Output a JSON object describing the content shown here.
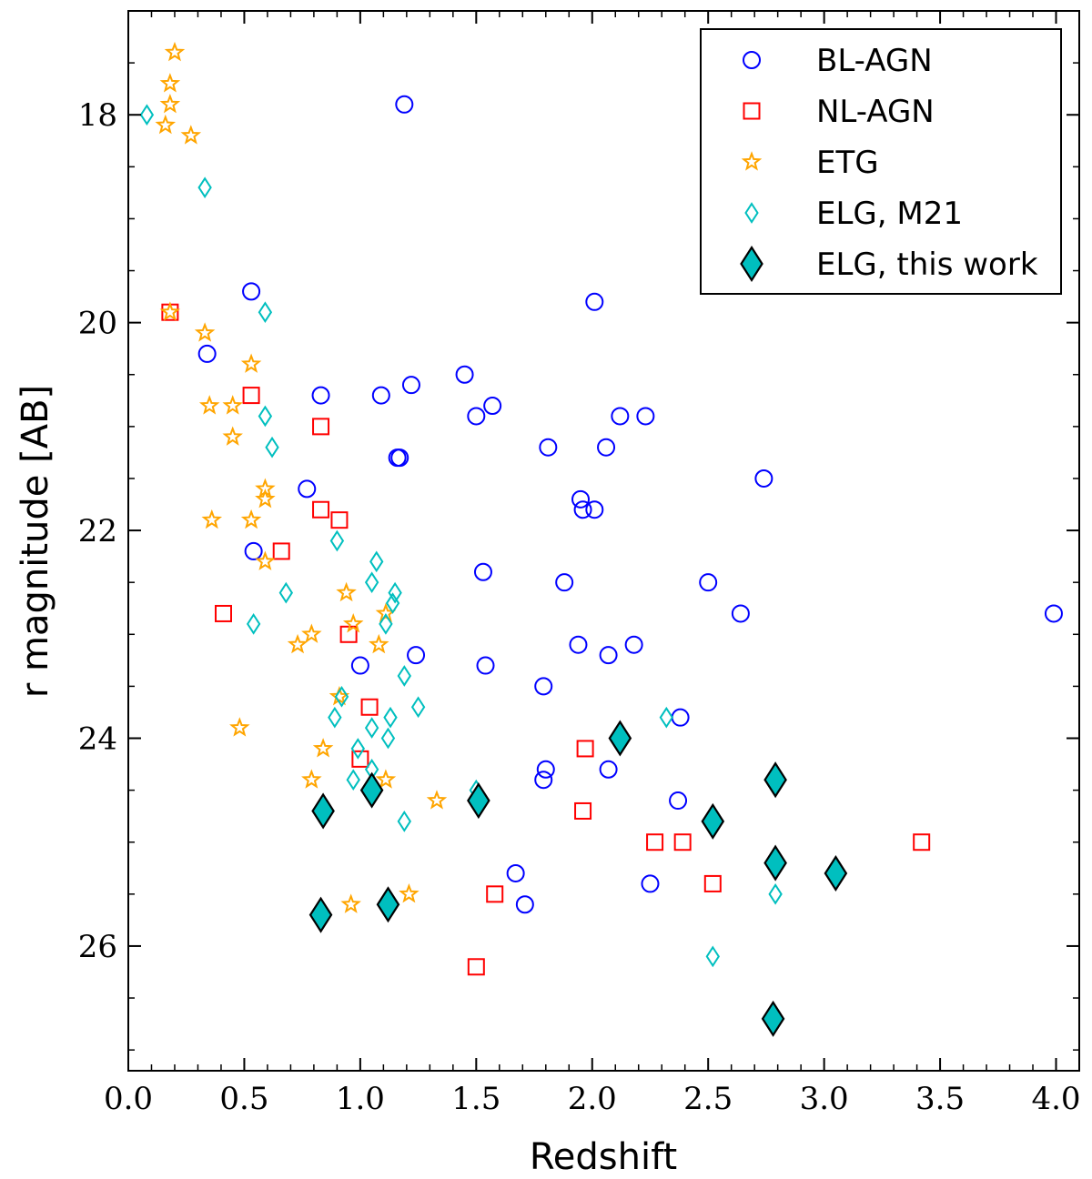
{
  "chart_data": {
    "type": "scatter",
    "title": "",
    "xlabel": "Redshift",
    "ylabel": "r magnitude [AB]",
    "xlim": [
      0.0,
      4.1
    ],
    "ylim": [
      27.2,
      17.0
    ],
    "y_inverted": true,
    "grid": false,
    "legend_position": "top-right",
    "xticks": [
      0.0,
      0.5,
      1.0,
      1.5,
      2.0,
      2.5,
      3.0,
      3.5,
      4.0
    ],
    "xtick_labels": [
      "0.0",
      "0.5",
      "1.0",
      "1.5",
      "2.0",
      "2.5",
      "3.0",
      "3.5",
      "4.0"
    ],
    "yticks": [
      18,
      20,
      22,
      24,
      26
    ],
    "ytick_labels": [
      "18",
      "20",
      "22",
      "24",
      "26"
    ],
    "series": [
      {
        "name": "BL-AGN",
        "marker": "circle-open",
        "color": "#0000ff",
        "x": [
          1.19,
          0.53,
          2.01,
          0.34,
          0.83,
          1.09,
          1.22,
          1.45,
          1.5,
          1.57,
          1.17,
          1.16,
          1.81,
          2.06,
          2.12,
          2.23,
          2.74,
          0.77,
          1.95,
          1.96,
          2.01,
          0.54,
          1.53,
          1.88,
          2.5,
          2.64,
          3.99,
          1.24,
          1.94,
          2.18,
          2.07,
          1.0,
          1.54,
          1.79,
          2.38,
          1.8,
          1.79,
          2.07,
          2.37,
          1.67,
          1.71,
          2.25
        ],
        "y": [
          17.9,
          19.7,
          19.8,
          20.3,
          20.7,
          20.7,
          20.6,
          20.5,
          20.9,
          20.8,
          21.3,
          21.3,
          21.2,
          21.2,
          20.9,
          20.9,
          21.5,
          21.6,
          21.7,
          21.8,
          21.8,
          22.2,
          22.4,
          22.5,
          22.5,
          22.8,
          22.8,
          23.2,
          23.1,
          23.1,
          23.2,
          23.3,
          23.3,
          23.5,
          23.8,
          24.3,
          24.4,
          24.3,
          24.6,
          25.3,
          25.6,
          25.4
        ]
      },
      {
        "name": "NL-AGN",
        "marker": "square-open",
        "color": "#ff0000",
        "x": [
          0.18,
          0.53,
          0.83,
          0.83,
          0.91,
          0.66,
          0.41,
          0.95,
          1.04,
          1.0,
          1.97,
          1.96,
          2.27,
          2.39,
          2.52,
          3.42,
          1.58,
          1.5
        ],
        "y": [
          19.9,
          20.7,
          21.0,
          21.8,
          21.9,
          22.2,
          22.8,
          23.0,
          23.7,
          24.2,
          24.1,
          24.7,
          25.0,
          25.0,
          25.4,
          25.0,
          25.5,
          26.2
        ],
        "legend_marker": "square-open"
      },
      {
        "name": "ETG",
        "marker": "star-open",
        "color": "#ffa500",
        "x": [
          0.2,
          0.18,
          0.18,
          0.16,
          0.27,
          0.18,
          0.33,
          0.53,
          0.35,
          0.45,
          0.45,
          0.59,
          0.59,
          0.53,
          0.36,
          0.59,
          0.94,
          0.97,
          1.11,
          0.79,
          0.73,
          1.08,
          0.91,
          0.48,
          0.84,
          0.79,
          1.11,
          1.33,
          1.21,
          0.96
        ],
        "y": [
          17.4,
          17.7,
          17.9,
          18.1,
          18.2,
          19.9,
          20.1,
          20.4,
          20.8,
          20.8,
          21.1,
          21.6,
          21.7,
          21.9,
          21.9,
          22.3,
          22.6,
          22.9,
          22.8,
          23.0,
          23.1,
          23.1,
          23.6,
          23.9,
          24.1,
          24.4,
          24.4,
          24.6,
          25.5,
          25.6
        ]
      },
      {
        "name": "ELG, M21",
        "marker": "diamond-open",
        "color": "#00bfbf",
        "x": [
          0.08,
          0.33,
          0.59,
          0.59,
          0.62,
          0.9,
          1.07,
          0.68,
          1.05,
          1.15,
          1.14,
          0.54,
          1.11,
          0.92,
          1.19,
          1.25,
          0.89,
          0.99,
          1.05,
          1.13,
          1.12,
          2.32,
          0.97,
          1.05,
          1.5,
          1.19,
          2.79,
          2.52
        ],
        "y": [
          18.0,
          18.7,
          19.9,
          20.9,
          21.2,
          22.1,
          22.3,
          22.6,
          22.5,
          22.6,
          22.7,
          22.9,
          22.9,
          23.6,
          23.4,
          23.7,
          23.8,
          24.1,
          23.9,
          23.8,
          24.0,
          23.8,
          24.4,
          24.3,
          24.5,
          24.8,
          25.5,
          26.1
        ]
      },
      {
        "name": "ELG, this work",
        "marker": "diamond-filled",
        "color": "#00bfbf",
        "edgecolor": "#000000",
        "x": [
          2.12,
          2.79,
          1.05,
          0.84,
          1.51,
          2.52,
          2.79,
          3.05,
          0.83,
          1.12,
          2.78
        ],
        "y": [
          24.0,
          24.4,
          24.5,
          24.7,
          24.6,
          24.8,
          25.2,
          25.3,
          25.7,
          25.6,
          26.7
        ]
      }
    ]
  }
}
